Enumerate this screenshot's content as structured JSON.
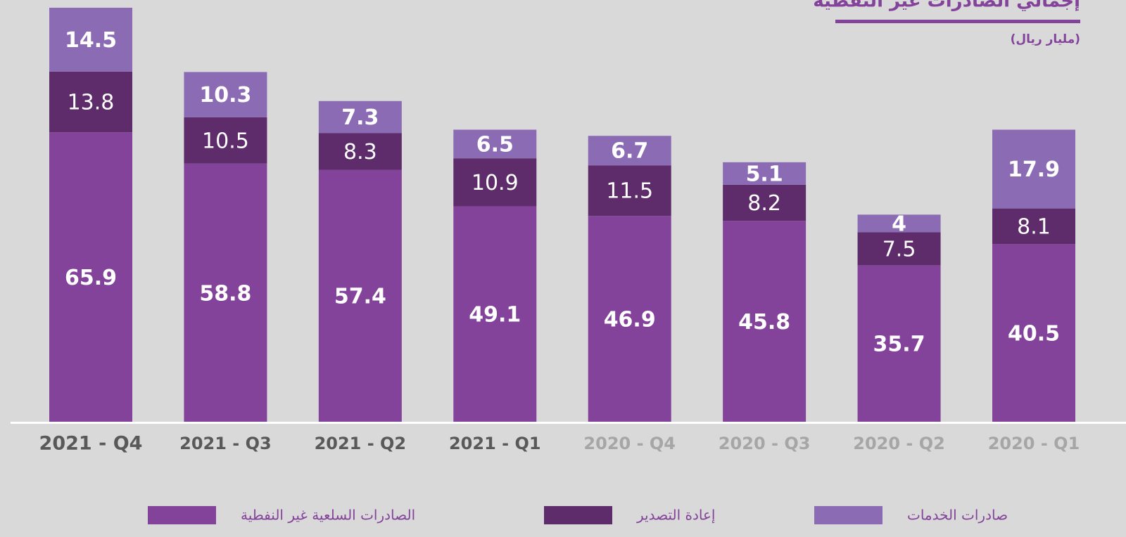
{
  "chart_data": {
    "type": "stacked-bar",
    "title": "إجمالي الصادرات غير النفطية",
    "subtitle": "(مليار ريال)",
    "categories": [
      "2021 - Q4",
      "2021 - Q3",
      "2021 - Q2",
      "2021 - Q1",
      "2020 - Q4",
      "2020 - Q3",
      "2020 - Q2",
      "2020 - Q1"
    ],
    "category_label_colors": [
      "#595959",
      "#595959",
      "#595959",
      "#595959",
      "#a6a6a6",
      "#a6a6a6",
      "#a6a6a6",
      "#a6a6a6"
    ],
    "series": [
      {
        "name": "الصادرات السلعية غير النفطية",
        "color": "#84439a",
        "values": [
          65.9,
          58.8,
          57.4,
          49.1,
          46.9,
          45.8,
          35.7,
          40.5
        ]
      },
      {
        "name": "إعادة التصدير",
        "color": "#5e2c6a",
        "values": [
          13.8,
          10.5,
          8.3,
          10.9,
          11.5,
          8.2,
          7.5,
          8.1
        ]
      },
      {
        "name": "صادرات الخدمات",
        "color": "#8b6cb4",
        "values": [
          14.5,
          10.3,
          7.3,
          6.5,
          6.7,
          5.1,
          4,
          17.9
        ]
      }
    ]
  }
}
